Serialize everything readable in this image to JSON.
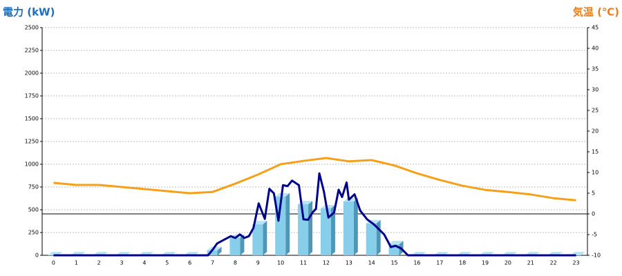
{
  "chart_data": {
    "type": "bar",
    "title": "電力 (kW)",
    "y2_title": "気温 (℃)",
    "categories": [
      "0",
      "1",
      "2",
      "3",
      "4",
      "5",
      "6",
      "7",
      "8",
      "9",
      "10",
      "11",
      "12",
      "13",
      "14",
      "15",
      "16",
      "17",
      "18",
      "19",
      "20",
      "21",
      "22",
      "23"
    ],
    "ylim": [
      0,
      2500
    ],
    "yticks": [
      0,
      250,
      500,
      750,
      1000,
      1250,
      1500,
      1750,
      2000,
      2250,
      2500
    ],
    "y2lim": [
      -10,
      45
    ],
    "y2ticks": [
      -10,
      -5,
      0,
      5,
      10,
      15,
      20,
      25,
      30,
      35,
      40,
      45
    ],
    "grid": true,
    "series": [
      {
        "type": "bar",
        "color": "#87ceeb",
        "values": [
          0,
          0,
          0,
          0,
          0,
          0,
          0,
          55,
          190,
          340,
          645,
          560,
          515,
          590,
          350,
          120,
          0,
          0,
          0,
          0,
          0,
          0,
          0,
          0
        ]
      },
      {
        "type": "line",
        "color": "#00008b",
        "x": [
          0,
          6.8,
          7.0,
          7.2,
          7.5,
          7.8,
          8.0,
          8.2,
          8.4,
          8.6,
          8.8,
          9.03,
          9.3,
          9.5,
          9.7,
          9.9,
          10.1,
          10.3,
          10.5,
          10.8,
          11.0,
          11.2,
          11.4,
          11.55,
          11.7,
          11.9,
          12.1,
          12.35,
          12.55,
          12.7,
          12.9,
          13.0,
          13.25,
          13.5,
          13.8,
          14.1,
          14.55,
          14.85,
          15.05,
          15.3,
          15.6,
          23
        ],
        "values": [
          0,
          0,
          60,
          130,
          170,
          210,
          190,
          230,
          190,
          210,
          300,
          570,
          400,
          730,
          680,
          380,
          770,
          760,
          820,
          770,
          395,
          390,
          470,
          510,
          900,
          700,
          415,
          470,
          720,
          640,
          800,
          610,
          670,
          490,
          395,
          340,
          230,
          90,
          105,
          75,
          0,
          0
        ]
      },
      {
        "type": "line",
        "color": "#f5a01a",
        "axis": "y2",
        "values": [
          7.5,
          7,
          7,
          6.5,
          6,
          5.5,
          5,
          5.3,
          7.3,
          9.5,
          12,
          12.8,
          13.5,
          12.7,
          13,
          11.7,
          9.8,
          8.2,
          6.8,
          5.8,
          5.3,
          4.7,
          3.8,
          3.3
        ]
      }
    ]
  }
}
